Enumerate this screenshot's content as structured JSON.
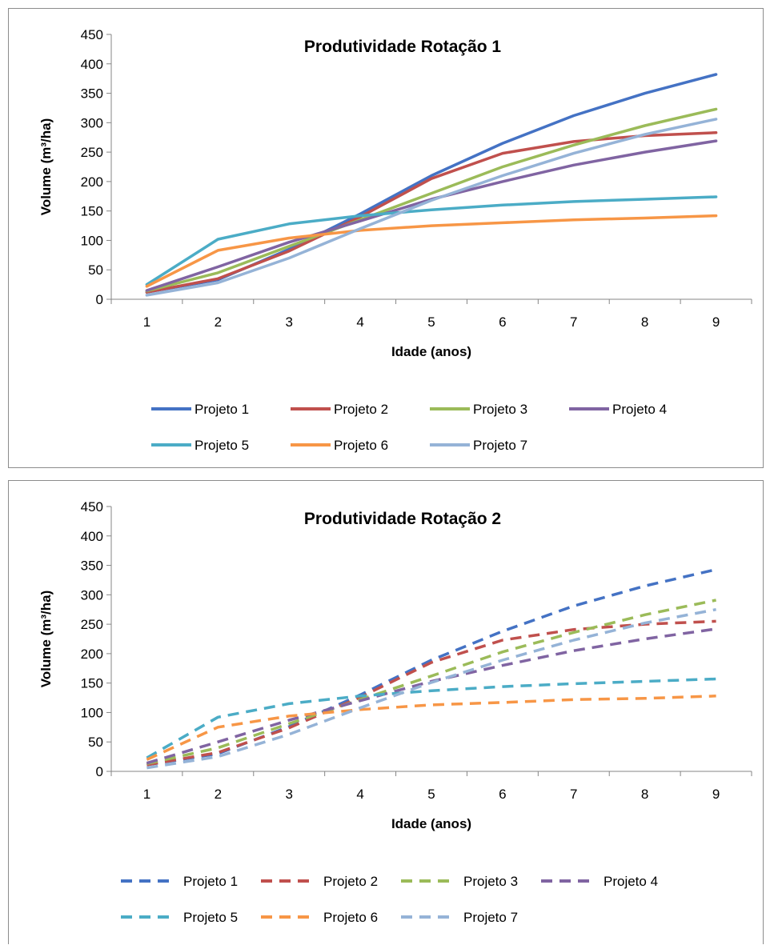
{
  "chart_data": [
    {
      "type": "line",
      "title": "Produtividade Rotação 1",
      "xlabel": "Idade (anos)",
      "ylabel": "Volume (m³/ha)",
      "ylim": [
        0,
        450
      ],
      "yticks": [
        0,
        50,
        100,
        150,
        200,
        250,
        300,
        350,
        400,
        450
      ],
      "x": [
        1,
        2,
        3,
        4,
        5,
        6,
        7,
        8,
        9
      ],
      "line_style": "solid",
      "legend_position": "bottom",
      "series": [
        {
          "name": "Projeto 1",
          "color": "#4472C4",
          "values": [
            12,
            33,
            85,
            145,
            210,
            265,
            312,
            350,
            382
          ]
        },
        {
          "name": "Projeto 2",
          "color": "#C0504D",
          "values": [
            12,
            35,
            82,
            140,
            205,
            248,
            268,
            278,
            283
          ]
        },
        {
          "name": "Projeto 3",
          "color": "#9BBB59",
          "values": [
            14,
            45,
            90,
            135,
            180,
            225,
            262,
            295,
            323
          ]
        },
        {
          "name": "Projeto 4",
          "color": "#8064A2",
          "values": [
            15,
            55,
            97,
            133,
            170,
            200,
            228,
            250,
            269
          ]
        },
        {
          "name": "Projeto 5",
          "color": "#4BACC6",
          "values": [
            25,
            102,
            128,
            142,
            152,
            160,
            166,
            170,
            174
          ]
        },
        {
          "name": "Projeto 6",
          "color": "#F79646",
          "values": [
            22,
            83,
            104,
            117,
            125,
            130,
            135,
            138,
            142
          ]
        },
        {
          "name": "Projeto 7",
          "color": "#95B3D7",
          "values": [
            7,
            28,
            70,
            120,
            168,
            210,
            248,
            280,
            306
          ]
        }
      ]
    },
    {
      "type": "line",
      "title": "Produtividade Rotação 2",
      "xlabel": "Idade (anos)",
      "ylabel": "Volume (m³/ha)",
      "ylim": [
        0,
        450
      ],
      "yticks": [
        0,
        50,
        100,
        150,
        200,
        250,
        300,
        350,
        400,
        450
      ],
      "x": [
        1,
        2,
        3,
        4,
        5,
        6,
        7,
        8,
        9
      ],
      "line_style": "dashed",
      "legend_position": "bottom",
      "series": [
        {
          "name": "Projeto 1",
          "color": "#4472C4",
          "values": [
            11,
            30,
            76,
            130,
            189,
            238,
            281,
            315,
            343
          ]
        },
        {
          "name": "Projeto 2",
          "color": "#C0504D",
          "values": [
            11,
            32,
            74,
            126,
            185,
            223,
            241,
            250,
            255
          ]
        },
        {
          "name": "Projeto 3",
          "color": "#9BBB59",
          "values": [
            13,
            40,
            81,
            122,
            162,
            203,
            236,
            266,
            291
          ]
        },
        {
          "name": "Projeto 4",
          "color": "#8064A2",
          "values": [
            14,
            50,
            87,
            120,
            153,
            180,
            205,
            225,
            242
          ]
        },
        {
          "name": "Projeto 5",
          "color": "#4BACC6",
          "values": [
            23,
            92,
            115,
            128,
            137,
            144,
            149,
            153,
            157
          ]
        },
        {
          "name": "Projeto 6",
          "color": "#F79646",
          "values": [
            20,
            75,
            94,
            105,
            113,
            117,
            122,
            124,
            128
          ]
        },
        {
          "name": "Projeto 7",
          "color": "#95B3D7",
          "values": [
            6,
            25,
            63,
            108,
            151,
            189,
            223,
            252,
            275
          ]
        }
      ]
    }
  ]
}
